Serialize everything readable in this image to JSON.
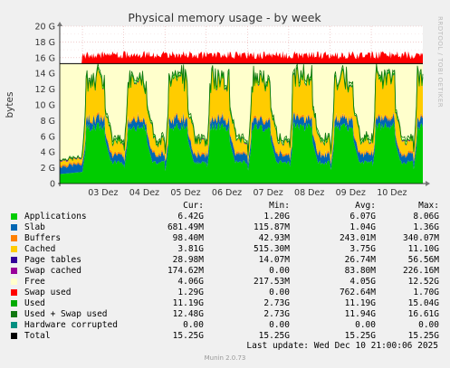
{
  "chart_data": {
    "type": "area",
    "title": "Physical memory usage - by week",
    "ylabel": "bytes",
    "ylim": [
      0,
      20
    ],
    "y_unit": "G",
    "yticks": [
      "0",
      "2 G",
      "4 G",
      "6 G",
      "8 G",
      "10 G",
      "12 G",
      "14 G",
      "16 G",
      "18 G",
      "20 G"
    ],
    "xticks": [
      "03 Dez",
      "04 Dez",
      "05 Dez",
      "06 Dez",
      "07 Dez",
      "08 Dez",
      "09 Dez",
      "10 Dez"
    ],
    "grid": true,
    "x_days": 8.8,
    "total_gb": 15.25,
    "series": [
      {
        "name": "Applications",
        "color": "#00cc00"
      },
      {
        "name": "Slab",
        "color": "#0066b3"
      },
      {
        "name": "Buffers",
        "color": "#ff8000"
      },
      {
        "name": "Cached",
        "color": "#ffcc00"
      },
      {
        "name": "Page tables",
        "color": "#330099"
      },
      {
        "name": "Swap cached",
        "color": "#990099"
      },
      {
        "name": "Free",
        "color": "#ffffcc"
      },
      {
        "name": "Swap used",
        "color": "#ff0000"
      },
      {
        "name": "Used",
        "color": "#00aa00"
      },
      {
        "name": "Used + Swap used",
        "color": "#117711"
      },
      {
        "name": "Hardware corrupted",
        "color": "#008f80"
      },
      {
        "name": "Total",
        "color": "#000000"
      }
    ]
  },
  "legend": {
    "headers": {
      "cur": "Cur:",
      "min": "Min:",
      "avg": "Avg:",
      "max": "Max:"
    },
    "rows": [
      {
        "name": "Applications",
        "cur": "6.42G",
        "min": "1.20G",
        "avg": "6.07G",
        "max": "8.06G"
      },
      {
        "name": "Slab",
        "cur": "681.49M",
        "min": "115.87M",
        "avg": "1.04G",
        "max": "1.36G"
      },
      {
        "name": "Buffers",
        "cur": "98.40M",
        "min": "42.93M",
        "avg": "243.01M",
        "max": "340.07M"
      },
      {
        "name": "Cached",
        "cur": "3.81G",
        "min": "515.30M",
        "avg": "3.75G",
        "max": "11.10G"
      },
      {
        "name": "Page tables",
        "cur": "28.98M",
        "min": "14.07M",
        "avg": "26.74M",
        "max": "56.56M"
      },
      {
        "name": "Swap cached",
        "cur": "174.62M",
        "min": "0.00",
        "avg": "83.80M",
        "max": "226.16M"
      },
      {
        "name": "Free",
        "cur": "4.06G",
        "min": "217.53M",
        "avg": "4.05G",
        "max": "12.52G"
      },
      {
        "name": "Swap used",
        "cur": "1.29G",
        "min": "0.00",
        "avg": "762.64M",
        "max": "1.70G"
      },
      {
        "name": "Used",
        "cur": "11.19G",
        "min": "2.73G",
        "avg": "11.19G",
        "max": "15.04G"
      },
      {
        "name": "Used + Swap used",
        "cur": "12.48G",
        "min": "2.73G",
        "avg": "11.94G",
        "max": "16.61G"
      },
      {
        "name": "Hardware corrupted",
        "cur": "0.00",
        "min": "0.00",
        "avg": "0.00",
        "max": "0.00"
      },
      {
        "name": "Total",
        "cur": "15.25G",
        "min": "15.25G",
        "avg": "15.25G",
        "max": "15.25G"
      }
    ]
  },
  "footer": {
    "last_update": "Last update: Wed Dec 10 21:00:06 2025",
    "munin": "Munin 2.0.73",
    "rrdtool": "RRDTOOL / TOBI OETIKER"
  }
}
